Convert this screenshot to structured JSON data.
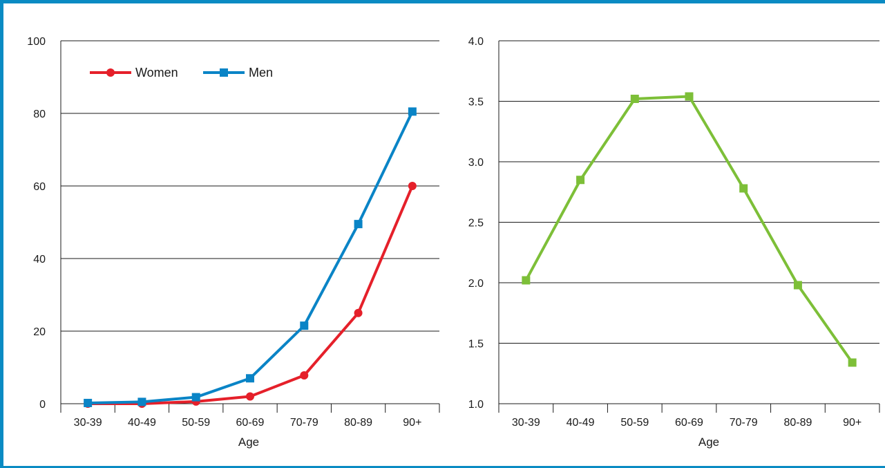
{
  "colors": {
    "frame": "#0a8bc3",
    "women": "#e5202a",
    "men": "#0a84c6",
    "right_series": "#7dbf38",
    "gridline": "#1a1a1a"
  },
  "chart_data": [
    {
      "type": "line",
      "xlabel": "Age",
      "ylabel": "",
      "categories": [
        "30-39",
        "40-49",
        "50-59",
        "60-69",
        "70-79",
        "80-89",
        "90+"
      ],
      "ylim": [
        0,
        100
      ],
      "yticks": [
        0,
        20,
        40,
        60,
        80,
        100
      ],
      "grid": true,
      "legend": "top-left",
      "series": [
        {
          "name": "Women",
          "color": "#e5202a",
          "marker": "circle",
          "values": [
            0,
            0,
            0.6,
            2,
            7.8,
            25,
            60
          ]
        },
        {
          "name": "Men",
          "color": "#0a84c6",
          "marker": "square",
          "values": [
            0.2,
            0.5,
            1.8,
            7,
            21.5,
            49.5,
            80.5
          ]
        }
      ]
    },
    {
      "type": "line",
      "xlabel": "Age",
      "ylabel": "",
      "categories": [
        "30-39",
        "40-49",
        "50-59",
        "60-69",
        "70-79",
        "80-89",
        "90+"
      ],
      "ylim": [
        1.0,
        4.0
      ],
      "yticks": [
        "1.0",
        "1.5",
        "2.0",
        "2.5",
        "3.0",
        "3.5",
        "4.0"
      ],
      "grid": true,
      "legend": "none",
      "series": [
        {
          "color": "#7dbf38",
          "marker": "square",
          "values": [
            2.02,
            2.85,
            3.52,
            3.54,
            2.78,
            1.98,
            1.34
          ]
        }
      ]
    }
  ]
}
